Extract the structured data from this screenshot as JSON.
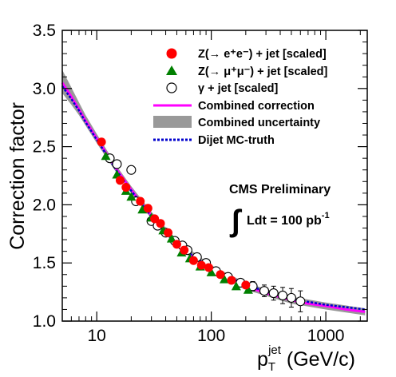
{
  "chart_data": {
    "type": "scatter",
    "xlabel_main": "p",
    "xlabel_sub": "T",
    "xlabel_sup": "jet",
    "xlabel_unit": " (GeV/c)",
    "ylabel": "Correction factor",
    "xscale": "log",
    "xlim": [
      5,
      2300
    ],
    "ylim": [
      1.0,
      3.5
    ],
    "x_ticks": [
      10,
      100,
      1000
    ],
    "x_tick_labels": [
      "10",
      "100",
      "1000"
    ],
    "y_ticks": [
      1.0,
      1.5,
      2.0,
      2.5,
      3.0,
      3.5
    ],
    "y_tick_labels": [
      "1.0",
      "1.5",
      "2.0",
      "2.5",
      "3.0",
      "3.5"
    ],
    "grid": false,
    "legend_position": "top-right",
    "legend": [
      {
        "key": "zee",
        "label": "Z(→ e⁺e⁻) + jet [scaled]"
      },
      {
        "key": "zmm",
        "label": "Z(→ μ⁺μ⁻) + jet [scaled]"
      },
      {
        "key": "gam",
        "label": "γ + jet [scaled]"
      },
      {
        "key": "comb",
        "label": "Combined correction"
      },
      {
        "key": "unc",
        "label": "Combined uncertainty"
      },
      {
        "key": "mc",
        "label": "Dijet MC-truth"
      }
    ],
    "annotations": {
      "label1": "CMS Preliminary",
      "integral": "∫",
      "label2_main": "Ldt = 100 pb",
      "label2_sup": "-1"
    },
    "series": [
      {
        "key": "zee",
        "marker": "filled-circle",
        "color": "#ff0000",
        "points": [
          {
            "x": 11,
            "y": 2.54
          },
          {
            "x": 16,
            "y": 2.21
          },
          {
            "x": 18,
            "y": 2.15
          },
          {
            "x": 24,
            "y": 2.03
          },
          {
            "x": 28,
            "y": 1.97
          },
          {
            "x": 32,
            "y": 1.88
          },
          {
            "x": 36,
            "y": 1.84
          },
          {
            "x": 42,
            "y": 1.76
          },
          {
            "x": 50,
            "y": 1.66
          },
          {
            "x": 58,
            "y": 1.61
          },
          {
            "x": 70,
            "y": 1.52
          },
          {
            "x": 82,
            "y": 1.48
          },
          {
            "x": 95,
            "y": 1.46
          },
          {
            "x": 120,
            "y": 1.4
          },
          {
            "x": 150,
            "y": 1.35
          },
          {
            "x": 200,
            "y": 1.31
          }
        ]
      },
      {
        "key": "zmm",
        "marker": "filled-triangle",
        "color": "#008000",
        "points": [
          {
            "x": 12,
            "y": 2.42
          },
          {
            "x": 15,
            "y": 2.26
          },
          {
            "x": 18,
            "y": 2.12
          },
          {
            "x": 20,
            "y": 2.07
          },
          {
            "x": 25,
            "y": 1.96
          },
          {
            "x": 30,
            "y": 1.89
          },
          {
            "x": 38,
            "y": 1.78
          },
          {
            "x": 45,
            "y": 1.71
          },
          {
            "x": 55,
            "y": 1.59
          },
          {
            "x": 65,
            "y": 1.54
          },
          {
            "x": 80,
            "y": 1.47
          },
          {
            "x": 100,
            "y": 1.42
          },
          {
            "x": 130,
            "y": 1.36
          },
          {
            "x": 165,
            "y": 1.3
          },
          {
            "x": 210,
            "y": 1.27
          }
        ]
      },
      {
        "key": "gam",
        "marker": "open-circle",
        "color": "#000000",
        "points": [
          {
            "x": 13,
            "y": 2.4,
            "err": 0.03
          },
          {
            "x": 15,
            "y": 2.35,
            "err": 0.03
          },
          {
            "x": 20,
            "y": 2.3,
            "err": 0.03
          },
          {
            "x": 22,
            "y": 2.03,
            "err": 0.03
          },
          {
            "x": 30,
            "y": 1.86,
            "err": 0.03
          },
          {
            "x": 34,
            "y": 1.82,
            "err": 0.03
          },
          {
            "x": 40,
            "y": 1.76,
            "err": 0.03
          },
          {
            "x": 48,
            "y": 1.69,
            "err": 0.03
          },
          {
            "x": 56,
            "y": 1.65,
            "err": 0.03
          },
          {
            "x": 62,
            "y": 1.61,
            "err": 0.03
          },
          {
            "x": 75,
            "y": 1.55,
            "err": 0.03
          },
          {
            "x": 90,
            "y": 1.5,
            "err": 0.03
          },
          {
            "x": 110,
            "y": 1.43,
            "err": 0.03
          },
          {
            "x": 140,
            "y": 1.38,
            "err": 0.03
          },
          {
            "x": 180,
            "y": 1.33,
            "err": 0.03
          },
          {
            "x": 230,
            "y": 1.3,
            "err": 0.04
          },
          {
            "x": 290,
            "y": 1.26,
            "err": 0.05
          },
          {
            "x": 350,
            "y": 1.24,
            "err": 0.06
          },
          {
            "x": 420,
            "y": 1.22,
            "err": 0.07
          },
          {
            "x": 500,
            "y": 1.2,
            "err": 0.08
          },
          {
            "x": 600,
            "y": 1.17,
            "err": 0.09
          }
        ]
      },
      {
        "key": "comb",
        "type": "line",
        "color": "#ff00ff",
        "points": [
          {
            "x": 5,
            "y": 3.05
          },
          {
            "x": 6,
            "y": 2.93
          },
          {
            "x": 7,
            "y": 2.82
          },
          {
            "x": 8,
            "y": 2.72
          },
          {
            "x": 10,
            "y": 2.57
          },
          {
            "x": 12,
            "y": 2.45
          },
          {
            "x": 15,
            "y": 2.3
          },
          {
            "x": 20,
            "y": 2.13
          },
          {
            "x": 25,
            "y": 2.0
          },
          {
            "x": 30,
            "y": 1.91
          },
          {
            "x": 40,
            "y": 1.77
          },
          {
            "x": 50,
            "y": 1.67
          },
          {
            "x": 70,
            "y": 1.55
          },
          {
            "x": 100,
            "y": 1.45
          },
          {
            "x": 150,
            "y": 1.36
          },
          {
            "x": 200,
            "y": 1.3
          },
          {
            "x": 300,
            "y": 1.24
          },
          {
            "x": 500,
            "y": 1.18
          },
          {
            "x": 700,
            "y": 1.15
          },
          {
            "x": 1000,
            "y": 1.13
          },
          {
            "x": 1500,
            "y": 1.1
          },
          {
            "x": 2200,
            "y": 1.08
          }
        ]
      },
      {
        "key": "unc",
        "type": "band",
        "color": "#999999",
        "points": [
          {
            "x": 5,
            "ylow": 2.96,
            "yhigh": 3.16
          },
          {
            "x": 6,
            "ylow": 2.86,
            "yhigh": 3.01
          },
          {
            "x": 7,
            "ylow": 2.77,
            "yhigh": 2.88
          },
          {
            "x": 8,
            "ylow": 2.68,
            "yhigh": 2.77
          },
          {
            "x": 10,
            "ylow": 2.53,
            "yhigh": 2.61
          },
          {
            "x": 15,
            "ylow": 2.27,
            "yhigh": 2.33
          },
          {
            "x": 20,
            "ylow": 2.1,
            "yhigh": 2.16
          },
          {
            "x": 30,
            "ylow": 1.88,
            "yhigh": 1.94
          },
          {
            "x": 50,
            "ylow": 1.64,
            "yhigh": 1.7
          },
          {
            "x": 100,
            "ylow": 1.42,
            "yhigh": 1.48
          },
          {
            "x": 200,
            "ylow": 1.27,
            "yhigh": 1.33
          },
          {
            "x": 500,
            "ylow": 1.15,
            "yhigh": 1.21
          },
          {
            "x": 1000,
            "ylow": 1.1,
            "yhigh": 1.16
          },
          {
            "x": 2200,
            "ylow": 1.05,
            "yhigh": 1.11
          }
        ]
      },
      {
        "key": "mc",
        "type": "line",
        "color": "#0000cc",
        "points": [
          {
            "x": 5,
            "y": 3.02
          },
          {
            "x": 6,
            "y": 2.91
          },
          {
            "x": 7,
            "y": 2.81
          },
          {
            "x": 8,
            "y": 2.71
          },
          {
            "x": 10,
            "y": 2.56
          },
          {
            "x": 15,
            "y": 2.29
          },
          {
            "x": 20,
            "y": 2.12
          },
          {
            "x": 30,
            "y": 1.9
          },
          {
            "x": 50,
            "y": 1.66
          },
          {
            "x": 100,
            "y": 1.45
          },
          {
            "x": 200,
            "y": 1.31
          },
          {
            "x": 500,
            "y": 1.19
          },
          {
            "x": 1000,
            "y": 1.14
          },
          {
            "x": 2200,
            "y": 1.1
          }
        ]
      }
    ]
  }
}
